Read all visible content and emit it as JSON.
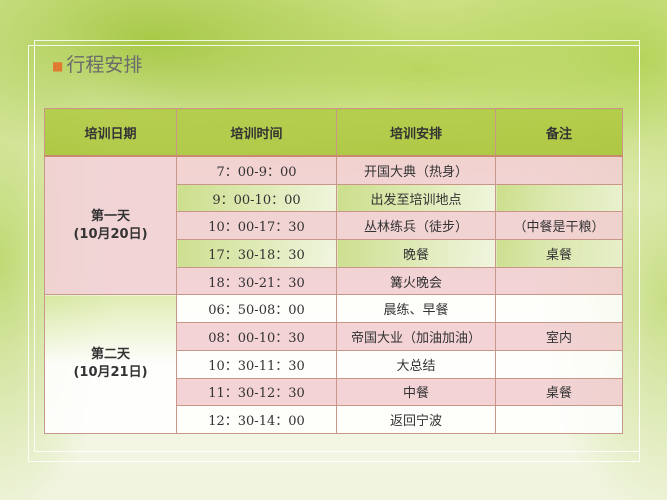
{
  "title": "行程安排",
  "table": {
    "headers": [
      "培训日期",
      "培训时间",
      "培训安排",
      "备注"
    ],
    "days": [
      {
        "label": "第一天",
        "date": "(10月20日)",
        "rows": [
          {
            "time": "7：00-9：00",
            "activity": "开国大典（热身）",
            "note": ""
          },
          {
            "time": "9：00-10：00",
            "activity": "出发至培训地点",
            "note": ""
          },
          {
            "time": "10：00-17：30",
            "activity": "丛林练兵（徒步）",
            "note": "（中餐是干粮）"
          },
          {
            "time": "17：30-18：30",
            "activity": "晚餐",
            "note": "桌餐"
          },
          {
            "time": "18：30-21：30",
            "activity": "篝火晚会",
            "note": ""
          }
        ]
      },
      {
        "label": "第二天",
        "date": "(10月21日)",
        "rows": [
          {
            "time": "06：50-08：00",
            "activity": "晨练、早餐",
            "note": ""
          },
          {
            "time": "08：00-10：30",
            "activity": "帝国大业（加油加油）",
            "note": "室内"
          },
          {
            "time": "10：30-11：30",
            "activity": "大总结",
            "note": ""
          },
          {
            "time": "11：30-12：30",
            "activity": "中餐",
            "note": "桌餐"
          },
          {
            "time": "12：30-14：00",
            "activity": "返回宁波",
            "note": ""
          }
        ]
      }
    ]
  }
}
